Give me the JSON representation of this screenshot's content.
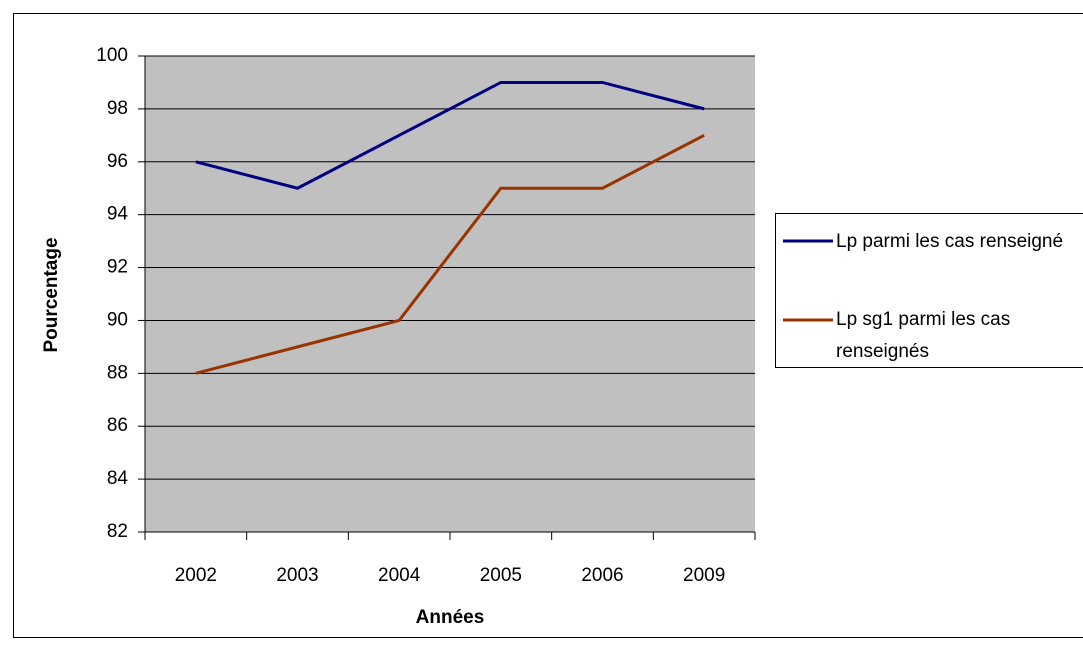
{
  "chart_data": {
    "type": "line",
    "xlabel": "Années",
    "ylabel": "Pourcentage",
    "categories": [
      "2002",
      "2003",
      "2004",
      "2005",
      "2006",
      "2009"
    ],
    "series": [
      {
        "name": "Lp parmi les cas renseigné",
        "color": "#000080",
        "values": [
          96,
          95,
          97,
          99,
          99,
          98
        ]
      },
      {
        "name": "Lp sg1 parmi les cas renseignés",
        "color": "#993300",
        "values": [
          88,
          89,
          90,
          95,
          95,
          97
        ]
      }
    ],
    "ylim": [
      82,
      100
    ],
    "yticks": [
      82,
      84,
      86,
      88,
      90,
      92,
      94,
      96,
      98,
      100
    ],
    "grid": true,
    "legend": "right"
  }
}
